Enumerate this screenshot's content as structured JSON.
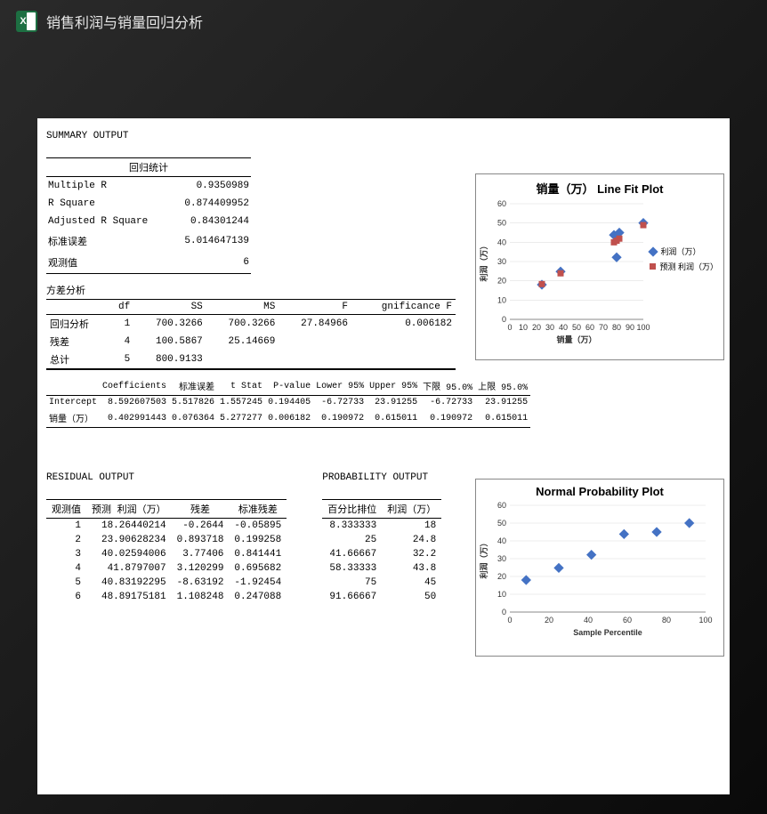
{
  "topbar": {
    "title": "销售利润与销量回归分析"
  },
  "summary": {
    "title": "SUMMARY OUTPUT",
    "regstats_header": "回归统计",
    "rows": [
      {
        "label": "Multiple R",
        "value": "0.9350989"
      },
      {
        "label": "R Square",
        "value": "0.874409952"
      },
      {
        "label": "Adjusted R Square",
        "value": "0.84301244"
      },
      {
        "label": "标准误差",
        "value": "5.014647139"
      },
      {
        "label": "观测值",
        "value": "6"
      }
    ]
  },
  "anova": {
    "title": "方差分析",
    "headers": [
      "",
      "df",
      "SS",
      "MS",
      "F",
      "gnificance F"
    ],
    "rows": [
      [
        "回归分析",
        "1",
        "700.3266",
        "700.3266",
        "27.84966",
        "0.006182"
      ],
      [
        "残差",
        "4",
        "100.5867",
        "25.14669",
        "",
        ""
      ],
      [
        "总计",
        "5",
        "800.9133",
        "",
        "",
        ""
      ]
    ]
  },
  "coeff": {
    "headers": [
      "",
      "Coefficients",
      "标准误差",
      "t Stat",
      "P-value",
      "Lower 95%",
      "Upper 95%",
      "下限 95.0%",
      "上限 95.0%"
    ],
    "rows": [
      [
        "Intercept",
        "8.592607503",
        "5.517826",
        "1.557245",
        "0.194405",
        "-6.72733",
        "23.91255",
        "-6.72733",
        "23.91255"
      ],
      [
        "销量（万）",
        "0.402991443",
        "0.076364",
        "5.277277",
        "0.006182",
        "0.190972",
        "0.615011",
        "0.190972",
        "0.615011"
      ]
    ]
  },
  "residual": {
    "title": "RESIDUAL OUTPUT",
    "headers": [
      "观测值",
      "预测 利润（万）",
      "残差",
      "标准残差"
    ],
    "rows": [
      [
        "1",
        "18.26440214",
        "-0.2644",
        "-0.05895"
      ],
      [
        "2",
        "23.90628234",
        "0.893718",
        "0.199258"
      ],
      [
        "3",
        "40.02594006",
        "3.77406",
        "0.841441"
      ],
      [
        "4",
        "41.8797007",
        "3.120299",
        "0.695682"
      ],
      [
        "5",
        "40.83192295",
        "-8.63192",
        "-1.92454"
      ],
      [
        "6",
        "48.89175181",
        "1.108248",
        "0.247088"
      ]
    ]
  },
  "probability": {
    "title": "PROBABILITY OUTPUT",
    "headers": [
      "百分比排位",
      "利润（万）"
    ],
    "rows": [
      [
        "8.333333",
        "18"
      ],
      [
        "25",
        "24.8"
      ],
      [
        "41.66667",
        "32.2"
      ],
      [
        "58.33333",
        "43.8"
      ],
      [
        "75",
        "45"
      ],
      [
        "91.66667",
        "50"
      ]
    ]
  },
  "chart1": {
    "title": "销量（万） Line Fit  Plot",
    "xlabel": "销量（万）",
    "ylabel": "利润（万）",
    "xlim": [
      0,
      100
    ],
    "xticks": [
      0,
      10,
      20,
      30,
      40,
      50,
      60,
      70,
      80,
      90,
      100
    ],
    "ylim": [
      0,
      60
    ],
    "yticks": [
      0,
      10,
      20,
      30,
      40,
      50,
      60
    ],
    "series": [
      {
        "name": "利润（万）",
        "type": "diamond",
        "color": "#4472c4",
        "points": [
          [
            24,
            18
          ],
          [
            38,
            24.8
          ],
          [
            78,
            43.8
          ],
          [
            82,
            45
          ],
          [
            80,
            32.2
          ],
          [
            100,
            50
          ]
        ]
      },
      {
        "name": "预测 利润（万）",
        "type": "square",
        "color": "#c0504d",
        "points": [
          [
            24,
            18.3
          ],
          [
            38,
            23.9
          ],
          [
            78,
            40.0
          ],
          [
            82,
            41.9
          ],
          [
            80,
            40.8
          ],
          [
            100,
            48.9
          ]
        ]
      }
    ],
    "background": "#ffffff"
  },
  "chart2": {
    "title": "Normal Probability Plot",
    "xlabel": "Sample Percentile",
    "ylabel": "利润（万）",
    "xlim": [
      0,
      100
    ],
    "xticks": [
      0,
      20,
      40,
      60,
      80,
      100
    ],
    "ylim": [
      0,
      60
    ],
    "yticks": [
      0,
      10,
      20,
      30,
      40,
      50,
      60
    ],
    "series": [
      {
        "name": "",
        "type": "diamond",
        "color": "#4472c4",
        "points": [
          [
            8.33,
            18
          ],
          [
            25,
            24.8
          ],
          [
            41.67,
            32.2
          ],
          [
            58.33,
            43.8
          ],
          [
            75,
            45
          ],
          [
            91.67,
            50
          ]
        ]
      }
    ],
    "background": "#ffffff"
  }
}
